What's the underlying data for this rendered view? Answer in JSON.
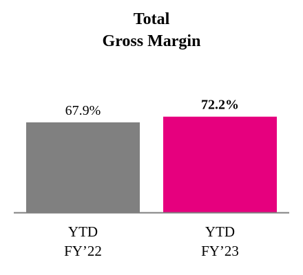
{
  "chart_data": {
    "type": "bar",
    "title": [
      "Total",
      "Gross Margin"
    ],
    "categories": [
      [
        "YTD",
        "FY’22"
      ],
      [
        "YTD",
        "FY’23"
      ]
    ],
    "values": [
      67.9,
      72.2
    ],
    "value_labels": [
      "67.9%",
      "72.2%"
    ],
    "value_label_bold": [
      false,
      true
    ],
    "colors": [
      "#808080",
      "#e6007e"
    ],
    "axis_color": "#7f7f7f",
    "ylim": [
      0,
      80
    ],
    "xlabel": "",
    "ylabel": "",
    "grid": false,
    "legend": false
  }
}
